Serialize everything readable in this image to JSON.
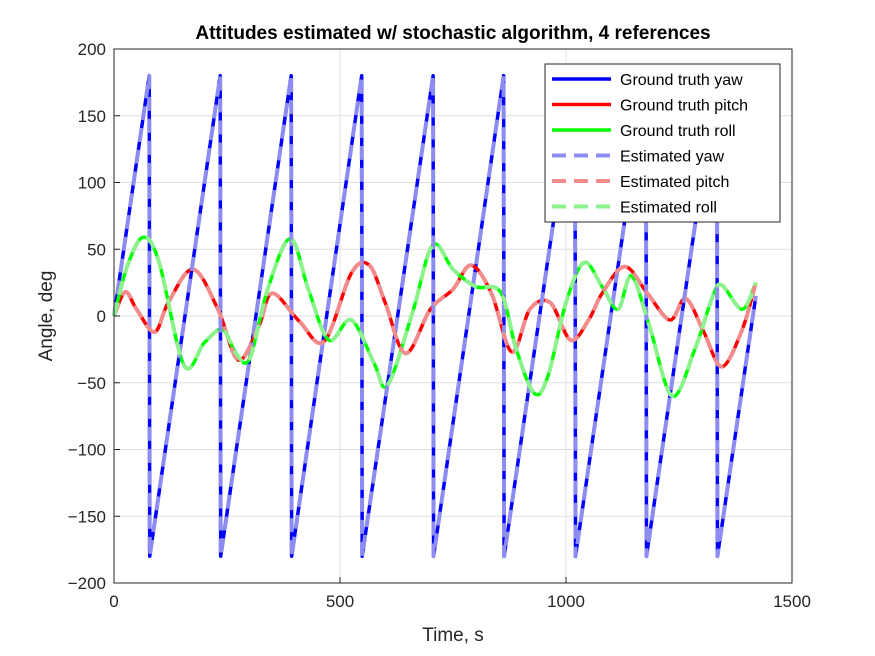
{
  "chart_data": {
    "type": "line",
    "title": "Attitudes estimated w/ stochastic algorithm, 4 references",
    "xlabel": "Time, s",
    "ylabel": "Angle, deg",
    "xlim": [
      0,
      1500
    ],
    "ylim": [
      -200,
      200
    ],
    "xticks": [
      0,
      500,
      1000,
      1500
    ],
    "yticks": [
      -200,
      -150,
      -100,
      -50,
      0,
      50,
      100,
      150,
      200
    ],
    "grid": true,
    "legend_placement": "top-right",
    "yaw_wrap_times": [
      78,
      235,
      392,
      548,
      706,
      862,
      1020,
      1177,
      1334
    ],
    "pitch_points": [
      [
        0,
        0
      ],
      [
        25,
        18
      ],
      [
        50,
        5
      ],
      [
        90,
        -12
      ],
      [
        120,
        10
      ],
      [
        175,
        35
      ],
      [
        230,
        5
      ],
      [
        275,
        -33
      ],
      [
        320,
        -8
      ],
      [
        350,
        17
      ],
      [
        410,
        -4
      ],
      [
        465,
        -19
      ],
      [
        525,
        32
      ],
      [
        565,
        38
      ],
      [
        600,
        10
      ],
      [
        645,
        -28
      ],
      [
        700,
        5
      ],
      [
        750,
        20
      ],
      [
        790,
        38
      ],
      [
        835,
        17
      ],
      [
        880,
        -27
      ],
      [
        920,
        5
      ],
      [
        965,
        10
      ],
      [
        1010,
        -18
      ],
      [
        1050,
        -3
      ],
      [
        1080,
        17
      ],
      [
        1130,
        37
      ],
      [
        1180,
        17
      ],
      [
        1230,
        -3
      ],
      [
        1265,
        13
      ],
      [
        1305,
        -12
      ],
      [
        1345,
        -38
      ],
      [
        1390,
        -10
      ],
      [
        1420,
        25
      ]
    ],
    "roll_points": [
      [
        0,
        0
      ],
      [
        30,
        38
      ],
      [
        65,
        59
      ],
      [
        100,
        40
      ],
      [
        155,
        -37
      ],
      [
        200,
        -20
      ],
      [
        240,
        -10
      ],
      [
        270,
        -28
      ],
      [
        300,
        -32
      ],
      [
        340,
        20
      ],
      [
        390,
        58
      ],
      [
        430,
        20
      ],
      [
        475,
        -18
      ],
      [
        525,
        -3
      ],
      [
        575,
        -35
      ],
      [
        605,
        -52
      ],
      [
        660,
        2
      ],
      [
        705,
        53
      ],
      [
        750,
        35
      ],
      [
        800,
        22
      ],
      [
        855,
        18
      ],
      [
        890,
        -25
      ],
      [
        930,
        -58
      ],
      [
        960,
        -45
      ],
      [
        1000,
        10
      ],
      [
        1040,
        40
      ],
      [
        1080,
        22
      ],
      [
        1115,
        5
      ],
      [
        1145,
        30
      ],
      [
        1185,
        -8
      ],
      [
        1235,
        -60
      ],
      [
        1285,
        -25
      ],
      [
        1325,
        15
      ],
      [
        1345,
        23
      ],
      [
        1390,
        5
      ],
      [
        1420,
        25
      ]
    ],
    "series": [
      {
        "name": "Ground truth yaw",
        "color": "#0000ff",
        "style": "solid",
        "source": "yaw"
      },
      {
        "name": "Ground truth pitch",
        "color": "#ff0000",
        "style": "solid",
        "source": "pitch"
      },
      {
        "name": "Ground truth roll",
        "color": "#00ff00",
        "style": "solid",
        "source": "roll"
      },
      {
        "name": "Estimated yaw",
        "color": "#8c8cf2",
        "style": "dashed",
        "source": "yaw"
      },
      {
        "name": "Estimated pitch",
        "color": "#f28c8c",
        "style": "dashed",
        "source": "pitch"
      },
      {
        "name": "Estimated roll",
        "color": "#8cf28c",
        "style": "dashed",
        "source": "roll"
      }
    ]
  }
}
